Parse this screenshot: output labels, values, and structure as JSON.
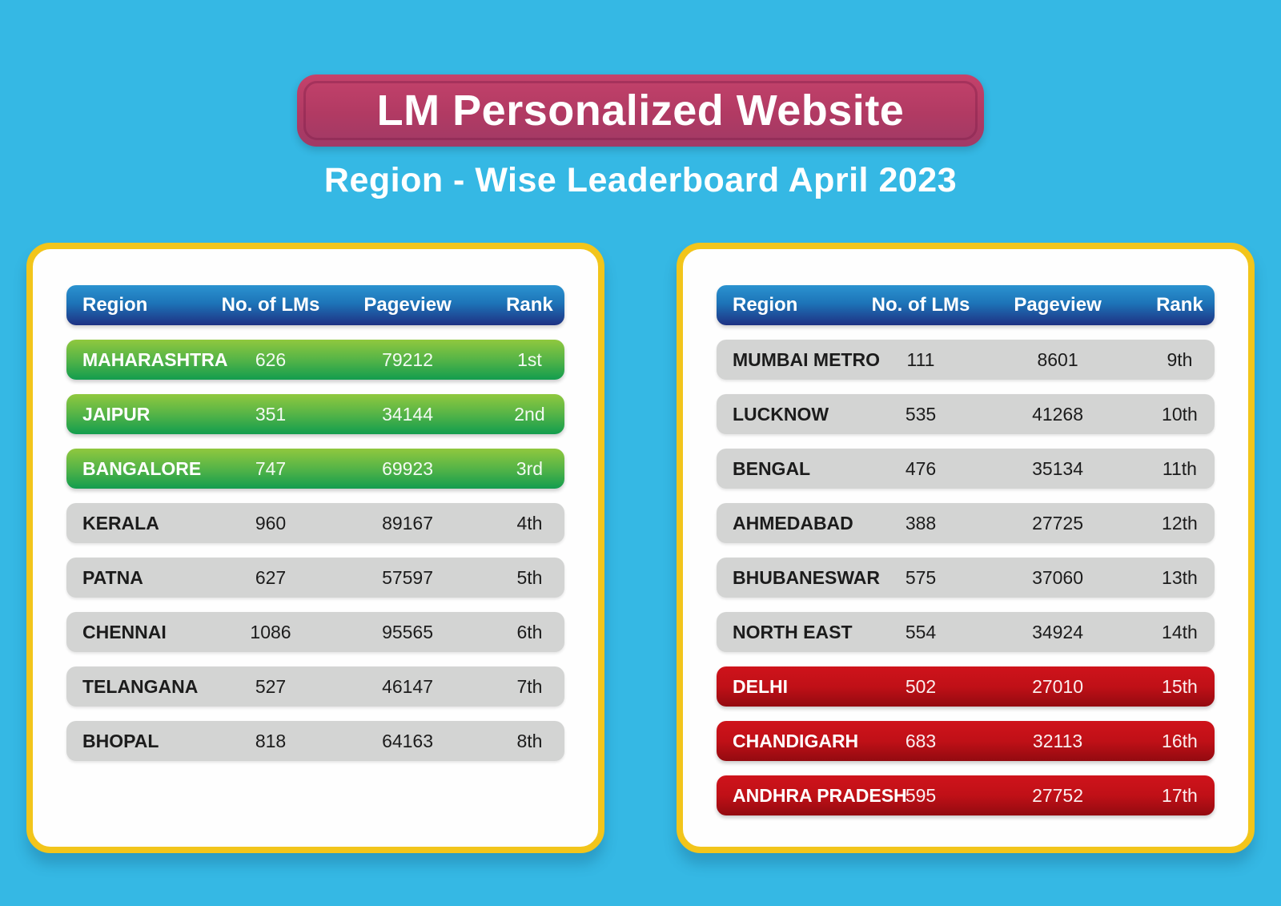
{
  "header": {
    "title": "LM Personalized Website",
    "subtitle": "Region - Wise Leaderboard April 2023"
  },
  "columns": [
    "Region",
    "No. of LMs",
    "Pageview",
    "Rank"
  ],
  "tables": [
    {
      "name": "leaderboard-ranks-1-8",
      "rows": [
        {
          "region": "MAHARASHTRA",
          "lms": "626",
          "pageview": "79212",
          "rank": "1st",
          "tier": "green"
        },
        {
          "region": "JAIPUR",
          "lms": "351",
          "pageview": "34144",
          "rank": "2nd",
          "tier": "green"
        },
        {
          "region": "BANGALORE",
          "lms": "747",
          "pageview": "69923",
          "rank": "3rd",
          "tier": "green"
        },
        {
          "region": "KERALA",
          "lms": "960",
          "pageview": "89167",
          "rank": "4th",
          "tier": "gray"
        },
        {
          "region": "PATNA",
          "lms": "627",
          "pageview": "57597",
          "rank": "5th",
          "tier": "gray"
        },
        {
          "region": "CHENNAI",
          "lms": "1086",
          "pageview": "95565",
          "rank": "6th",
          "tier": "gray"
        },
        {
          "region": "TELANGANA",
          "lms": "527",
          "pageview": "46147",
          "rank": "7th",
          "tier": "gray"
        },
        {
          "region": "BHOPAL",
          "lms": "818",
          "pageview": "64163",
          "rank": "8th",
          "tier": "gray"
        }
      ]
    },
    {
      "name": "leaderboard-ranks-9-17",
      "rows": [
        {
          "region": "MUMBAI METRO",
          "lms": "111",
          "pageview": "8601",
          "rank": "9th",
          "tier": "gray"
        },
        {
          "region": "LUCKNOW",
          "lms": "535",
          "pageview": "41268",
          "rank": "10th",
          "tier": "gray"
        },
        {
          "region": "BENGAL",
          "lms": "476",
          "pageview": "35134",
          "rank": "11th",
          "tier": "gray"
        },
        {
          "region": "AHMEDABAD",
          "lms": "388",
          "pageview": "27725",
          "rank": "12th",
          "tier": "gray"
        },
        {
          "region": "BHUBANESWAR",
          "lms": "575",
          "pageview": "37060",
          "rank": "13th",
          "tier": "gray"
        },
        {
          "region": "NORTH EAST",
          "lms": "554",
          "pageview": "34924",
          "rank": "14th",
          "tier": "gray"
        },
        {
          "region": "DELHI",
          "lms": "502",
          "pageview": "27010",
          "rank": "15th",
          "tier": "red"
        },
        {
          "region": "CHANDIGARH",
          "lms": "683",
          "pageview": "32113",
          "rank": "16th",
          "tier": "red"
        },
        {
          "region": "ANDHRA PRADESH",
          "lms": "595",
          "pageview": "27752",
          "rank": "17th",
          "tier": "red"
        }
      ]
    }
  ],
  "chart_data": {
    "type": "table",
    "title": "LM Personalized Website",
    "subtitle": "Region - Wise Leaderboard April 2023",
    "columns": [
      "Region",
      "No. of LMs",
      "Pageview",
      "Rank"
    ],
    "rows": [
      [
        "MAHARASHTRA",
        626,
        79212,
        "1st"
      ],
      [
        "JAIPUR",
        351,
        34144,
        "2nd"
      ],
      [
        "BANGALORE",
        747,
        69923,
        "3rd"
      ],
      [
        "KERALA",
        960,
        89167,
        "4th"
      ],
      [
        "PATNA",
        627,
        57597,
        "5th"
      ],
      [
        "CHENNAI",
        1086,
        95565,
        "6th"
      ],
      [
        "TELANGANA",
        527,
        46147,
        "7th"
      ],
      [
        "BHOPAL",
        818,
        64163,
        "8th"
      ],
      [
        "MUMBAI METRO",
        111,
        8601,
        "9th"
      ],
      [
        "LUCKNOW",
        535,
        41268,
        "10th"
      ],
      [
        "BENGAL",
        476,
        35134,
        "11th"
      ],
      [
        "AHMEDABAD",
        388,
        27725,
        "12th"
      ],
      [
        "BHUBANESWAR",
        575,
        37060,
        "13th"
      ],
      [
        "NORTH EAST",
        554,
        34924,
        "14th"
      ],
      [
        "DELHI",
        502,
        27010,
        "15th"
      ],
      [
        "CHANDIGARH",
        683,
        32113,
        "16th"
      ],
      [
        "ANDHRA PRADESH",
        595,
        27752,
        "17th"
      ]
    ],
    "row_color_groups": {
      "green": [
        "1st",
        "2nd",
        "3rd"
      ],
      "gray": [
        "4th",
        "5th",
        "6th",
        "7th",
        "8th",
        "9th",
        "10th",
        "11th",
        "12th",
        "13th",
        "14th"
      ],
      "red": [
        "15th",
        "16th",
        "17th"
      ]
    }
  },
  "colors": {
    "background": "#35b8e4",
    "banner_top": "#c4426b",
    "banner_bottom": "#a03a66",
    "card_border_yellow": "#f2c51b",
    "card_background": "#fefefe",
    "header_blue_top": "#2b93d0",
    "header_blue_bottom": "#1e3183",
    "row_green_top": "#90c83e",
    "row_green_bottom": "#129d4e",
    "row_gray": "#d3d4d3",
    "row_red_top": "#cf131b",
    "row_red_bottom": "#930a10",
    "text_light": "#ffffff",
    "text_dark": "#1c1c1c"
  }
}
